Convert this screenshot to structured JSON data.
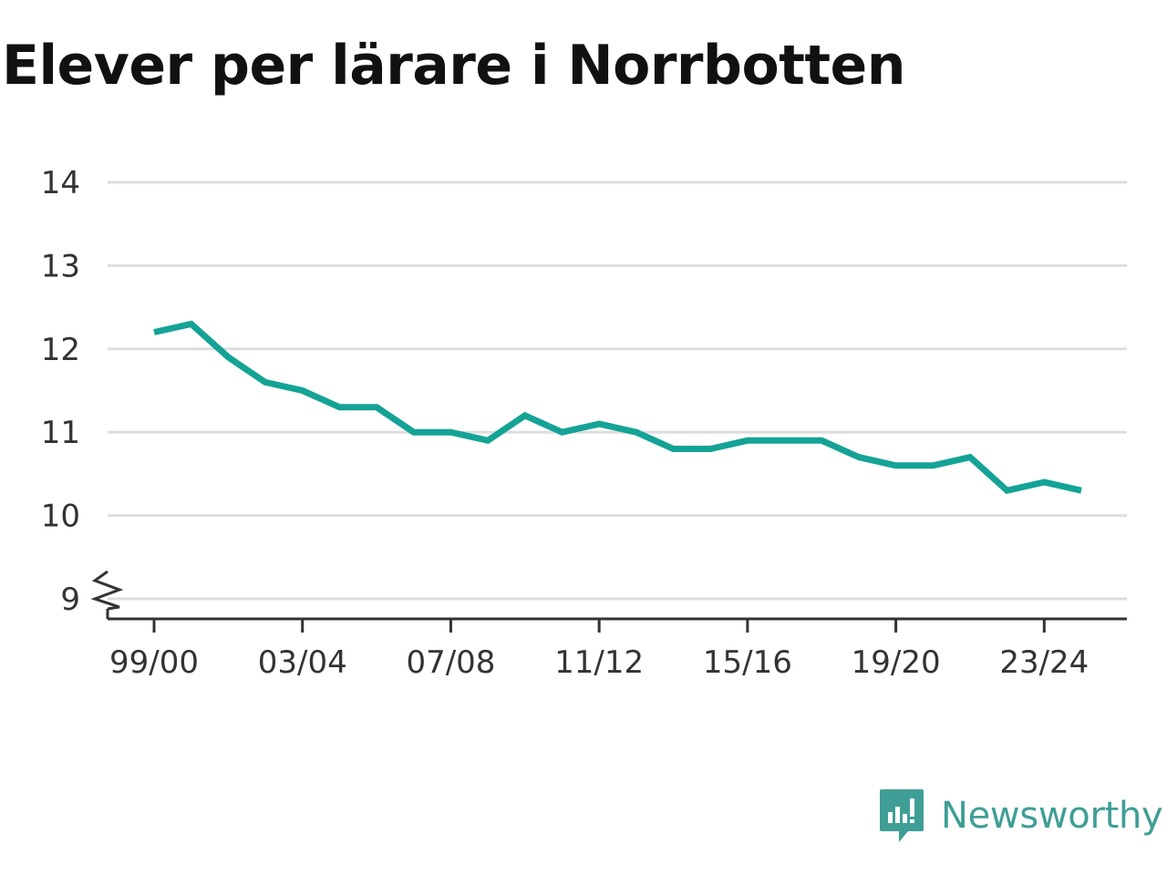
{
  "chart_data": {
    "type": "line",
    "title": "Elever per lärare i Norrbotten",
    "xlabel": "",
    "ylabel": "",
    "categories": [
      "99/00",
      "00/01",
      "01/02",
      "02/03",
      "03/04",
      "04/05",
      "05/06",
      "06/07",
      "07/08",
      "08/09",
      "09/10",
      "10/11",
      "11/12",
      "12/13",
      "13/14",
      "14/15",
      "15/16",
      "16/17",
      "17/18",
      "18/19",
      "19/20",
      "20/21",
      "21/22",
      "22/23",
      "23/24",
      "24/25"
    ],
    "x_tick_labels": [
      "99/00",
      "03/04",
      "07/08",
      "11/12",
      "15/16",
      "19/20",
      "23/24"
    ],
    "y_ticks": [
      9,
      10,
      11,
      12,
      13,
      14
    ],
    "y_tick_labels": [
      "9",
      "10",
      "11",
      "12",
      "13",
      "14"
    ],
    "ylim": [
      9,
      14
    ],
    "y_axis_break": true,
    "grid": true,
    "series": [
      {
        "color": "#14a396",
        "values": [
          12.2,
          12.3,
          11.9,
          11.6,
          11.5,
          11.3,
          11.3,
          11.0,
          11.0,
          10.9,
          11.2,
          11.0,
          11.1,
          11.0,
          10.8,
          10.8,
          10.9,
          10.9,
          10.9,
          10.7,
          10.6,
          10.6,
          10.7,
          10.3,
          10.4,
          10.3
        ]
      }
    ]
  },
  "brand": {
    "name": "Newsworthy",
    "icon": "newsworthy-logo-icon",
    "color": "#3f9e95"
  }
}
